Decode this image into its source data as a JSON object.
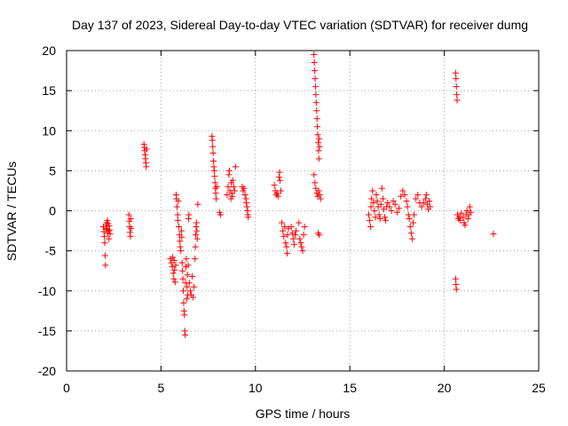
{
  "chart_data": {
    "type": "scatter",
    "title": "Day 137 of 2023, Sidereal Day-to-day VTEC variation (SDTVAR) for receiver dumg",
    "xlabel": "GPS time / hours",
    "ylabel": "SDTVAR / TECUs",
    "xlim": [
      0,
      25
    ],
    "ylim": [
      -20,
      20
    ],
    "xticks": [
      0,
      5,
      10,
      15,
      20,
      25
    ],
    "yticks": [
      -20,
      -15,
      -10,
      -5,
      0,
      5,
      10,
      15,
      20
    ],
    "xtick_labels": [
      "0",
      "5",
      "10",
      "15",
      "20",
      "25"
    ],
    "ytick_labels": [
      "-20",
      "-15",
      "-10",
      "-5",
      "0",
      "5",
      "10",
      "15",
      "20"
    ],
    "grid": true,
    "legend": "none",
    "marker": "+",
    "series_color": "#ff0000",
    "series": [
      {
        "name": "SDTVAR",
        "points": [
          [
            1.95,
            -2.0
          ],
          [
            1.98,
            -2.6
          ],
          [
            2.0,
            -3.2
          ],
          [
            2.02,
            -4.0
          ],
          [
            2.04,
            -5.6
          ],
          [
            2.06,
            -6.8
          ],
          [
            2.08,
            -2.3
          ],
          [
            2.1,
            -1.8
          ],
          [
            2.12,
            -1.5
          ],
          [
            2.14,
            -2.2
          ],
          [
            2.16,
            -1.2
          ],
          [
            2.18,
            -2.8
          ],
          [
            2.2,
            -1.6
          ],
          [
            2.22,
            -2.5
          ],
          [
            2.24,
            -3.5
          ],
          [
            2.26,
            -1.9
          ],
          [
            2.28,
            -2.4
          ],
          [
            2.3,
            -2.9
          ],
          [
            3.3,
            -0.5
          ],
          [
            3.32,
            -1.3
          ],
          [
            3.34,
            -2.0
          ],
          [
            3.36,
            -2.7
          ],
          [
            3.38,
            -3.2
          ],
          [
            3.4,
            -1.0
          ],
          [
            3.42,
            -2.2
          ],
          [
            4.1,
            8.3
          ],
          [
            4.12,
            7.9
          ],
          [
            4.14,
            7.5
          ],
          [
            4.16,
            7.0
          ],
          [
            4.18,
            6.5
          ],
          [
            4.2,
            6.0
          ],
          [
            4.22,
            5.5
          ],
          [
            4.24,
            7.7
          ],
          [
            5.5,
            -6.0
          ],
          [
            5.55,
            -6.5
          ],
          [
            5.6,
            -7.0
          ],
          [
            5.62,
            -5.8
          ],
          [
            5.65,
            -7.8
          ],
          [
            5.68,
            -8.5
          ],
          [
            5.7,
            -6.2
          ],
          [
            5.72,
            -7.4
          ],
          [
            5.75,
            -8.9
          ],
          [
            5.78,
            -6.8
          ],
          [
            5.8,
            2.0
          ],
          [
            5.82,
            1.5
          ],
          [
            5.85,
            0.5
          ],
          [
            5.88,
            -0.5
          ],
          [
            5.9,
            -1.2
          ],
          [
            5.92,
            1.2
          ],
          [
            5.95,
            -2.0
          ],
          [
            5.98,
            -3.0
          ],
          [
            6.0,
            -3.8
          ],
          [
            6.02,
            -4.5
          ],
          [
            6.05,
            -5.0
          ],
          [
            6.08,
            -2.5
          ],
          [
            6.1,
            -3.3
          ],
          [
            6.12,
            -6.5
          ],
          [
            6.14,
            -7.5
          ],
          [
            6.16,
            -8.5
          ],
          [
            6.18,
            -10.0
          ],
          [
            6.2,
            -11.5
          ],
          [
            6.22,
            -12.5
          ],
          [
            6.24,
            -13.0
          ],
          [
            6.26,
            -15.0
          ],
          [
            6.28,
            -15.5
          ],
          [
            6.3,
            -9.0
          ],
          [
            6.32,
            -7.0
          ],
          [
            6.34,
            -6.0
          ],
          [
            6.36,
            -11.0
          ],
          [
            6.38,
            -9.5
          ],
          [
            6.4,
            -8.0
          ],
          [
            6.42,
            -10.5
          ],
          [
            6.44,
            -6.8
          ],
          [
            6.46,
            -1.0
          ],
          [
            6.48,
            -0.5
          ],
          [
            6.5,
            -9.0
          ],
          [
            6.55,
            -10.0
          ],
          [
            6.6,
            -10.5
          ],
          [
            6.65,
            -8.2
          ],
          [
            6.7,
            -10.8
          ],
          [
            6.75,
            -9.5
          ],
          [
            6.8,
            -6.0
          ],
          [
            6.82,
            -4.5
          ],
          [
            6.84,
            -3.0
          ],
          [
            6.86,
            -2.0
          ],
          [
            6.88,
            -1.5
          ],
          [
            6.9,
            -2.5
          ],
          [
            6.92,
            -3.5
          ],
          [
            6.95,
            0.8
          ],
          [
            7.7,
            9.3
          ],
          [
            7.72,
            8.8
          ],
          [
            7.74,
            8.0
          ],
          [
            7.76,
            7.2
          ],
          [
            7.78,
            6.2
          ],
          [
            7.8,
            5.5
          ],
          [
            7.82,
            5.0
          ],
          [
            7.84,
            4.3
          ],
          [
            7.86,
            3.5
          ],
          [
            7.88,
            2.8
          ],
          [
            7.9,
            2.2
          ],
          [
            7.92,
            1.5
          ],
          [
            7.95,
            3.0
          ],
          [
            8.1,
            -0.2
          ],
          [
            8.15,
            -0.5
          ],
          [
            8.5,
            2.0
          ],
          [
            8.55,
            3.0
          ],
          [
            8.6,
            4.5
          ],
          [
            8.62,
            5.0
          ],
          [
            8.65,
            2.5
          ],
          [
            8.7,
            1.5
          ],
          [
            8.72,
            3.5
          ],
          [
            8.75,
            2.2
          ],
          [
            8.78,
            1.8
          ],
          [
            8.8,
            3.8
          ],
          [
            8.85,
            3.0
          ],
          [
            8.9,
            2.5
          ],
          [
            8.95,
            5.5
          ],
          [
            9.3,
            3.0
          ],
          [
            9.35,
            2.5
          ],
          [
            9.4,
            2.8
          ],
          [
            9.45,
            2.0
          ],
          [
            9.5,
            1.5
          ],
          [
            9.52,
            1.0
          ],
          [
            9.55,
            0.5
          ],
          [
            9.58,
            0.0
          ],
          [
            9.6,
            -0.5
          ],
          [
            9.62,
            -0.8
          ],
          [
            11.0,
            3.2
          ],
          [
            11.05,
            2.5
          ],
          [
            11.1,
            2.0
          ],
          [
            11.15,
            2.2
          ],
          [
            11.2,
            1.8
          ],
          [
            11.25,
            4.2
          ],
          [
            11.28,
            4.8
          ],
          [
            11.3,
            3.8
          ],
          [
            11.35,
            2.5
          ],
          [
            11.4,
            -1.5
          ],
          [
            11.45,
            -2.5
          ],
          [
            11.5,
            -3.2
          ],
          [
            11.55,
            -2.0
          ],
          [
            11.6,
            -4.0
          ],
          [
            11.65,
            -4.5
          ],
          [
            11.68,
            -5.3
          ],
          [
            11.7,
            -3.0
          ],
          [
            11.75,
            -2.2
          ],
          [
            11.9,
            -2.0
          ],
          [
            11.95,
            -2.8
          ],
          [
            12.0,
            -3.5
          ],
          [
            12.05,
            -4.2
          ],
          [
            12.1,
            -3.0
          ],
          [
            12.15,
            -2.5
          ],
          [
            12.3,
            -1.5
          ],
          [
            12.35,
            -3.5
          ],
          [
            12.4,
            -4.0
          ],
          [
            12.45,
            -4.5
          ],
          [
            12.5,
            -5.0
          ],
          [
            12.55,
            -3.0
          ],
          [
            12.6,
            -2.0
          ],
          [
            13.1,
            19.5
          ],
          [
            13.12,
            18.5
          ],
          [
            13.14,
            17.5
          ],
          [
            13.16,
            16.5
          ],
          [
            13.18,
            15.5
          ],
          [
            13.2,
            14.5
          ],
          [
            13.22,
            13.5
          ],
          [
            13.24,
            12.5
          ],
          [
            13.26,
            11.5
          ],
          [
            13.28,
            10.5
          ],
          [
            13.3,
            9.5
          ],
          [
            13.32,
            8.5
          ],
          [
            13.34,
            7.5
          ],
          [
            13.36,
            6.5
          ],
          [
            13.38,
            9.0
          ],
          [
            13.4,
            8.0
          ],
          [
            13.1,
            4.5
          ],
          [
            13.15,
            3.5
          ],
          [
            13.2,
            2.8
          ],
          [
            13.25,
            2.2
          ],
          [
            13.3,
            1.8
          ],
          [
            13.35,
            2.5
          ],
          [
            13.4,
            2.0
          ],
          [
            13.45,
            1.5
          ],
          [
            13.32,
            -2.8
          ],
          [
            13.38,
            -3.0
          ],
          [
            16.0,
            -0.5
          ],
          [
            16.05,
            -1.2
          ],
          [
            16.1,
            -2.0
          ],
          [
            16.12,
            0.5
          ],
          [
            16.15,
            1.5
          ],
          [
            16.2,
            2.5
          ],
          [
            16.25,
            1.0
          ],
          [
            16.3,
            0.0
          ],
          [
            16.35,
            -0.8
          ],
          [
            16.4,
            2.0
          ],
          [
            16.45,
            1.2
          ],
          [
            16.5,
            0.5
          ],
          [
            16.55,
            -0.5
          ],
          [
            16.6,
            -1.0
          ],
          [
            16.65,
            0.8
          ],
          [
            16.7,
            2.8
          ],
          [
            16.75,
            1.5
          ],
          [
            16.8,
            0.2
          ],
          [
            16.85,
            -0.8
          ],
          [
            16.9,
            -1.2
          ],
          [
            16.95,
            0.5
          ],
          [
            17.0,
            1.0
          ],
          [
            17.1,
            0.5
          ],
          [
            17.2,
            0.0
          ],
          [
            17.3,
            1.2
          ],
          [
            17.4,
            0.8
          ],
          [
            17.5,
            -0.2
          ],
          [
            17.6,
            0.3
          ],
          [
            17.7,
            1.8
          ],
          [
            17.8,
            2.5
          ],
          [
            17.9,
            2.0
          ],
          [
            18.0,
            1.2
          ],
          [
            18.05,
            0.5
          ],
          [
            18.1,
            -0.5
          ],
          [
            18.15,
            -1.0
          ],
          [
            18.2,
            -2.0
          ],
          [
            18.25,
            -2.8
          ],
          [
            18.3,
            -3.5
          ],
          [
            18.35,
            -1.5
          ],
          [
            18.4,
            -0.5
          ],
          [
            18.5,
            1.5
          ],
          [
            18.6,
            2.0
          ],
          [
            18.7,
            1.0
          ],
          [
            18.8,
            0.5
          ],
          [
            18.9,
            1.0
          ],
          [
            19.0,
            1.5
          ],
          [
            19.05,
            2.0
          ],
          [
            19.1,
            0.8
          ],
          [
            19.15,
            0.2
          ],
          [
            19.2,
            1.2
          ],
          [
            19.25,
            0.5
          ],
          [
            20.6,
            17.2
          ],
          [
            20.62,
            16.5
          ],
          [
            20.64,
            15.5
          ],
          [
            20.66,
            14.5
          ],
          [
            20.68,
            13.8
          ],
          [
            20.6,
            -8.5
          ],
          [
            20.62,
            -9.2
          ],
          [
            20.64,
            -9.8
          ],
          [
            20.7,
            -0.5
          ],
          [
            20.75,
            -1.0
          ],
          [
            20.8,
            -0.8
          ],
          [
            20.85,
            -1.2
          ],
          [
            20.9,
            -0.3
          ],
          [
            21.0,
            -0.8
          ],
          [
            21.05,
            -1.5
          ],
          [
            21.1,
            -1.8
          ],
          [
            21.15,
            -0.5
          ],
          [
            21.2,
            0.0
          ],
          [
            21.25,
            -1.0
          ],
          [
            21.3,
            -0.5
          ],
          [
            21.35,
            0.5
          ],
          [
            21.4,
            -0.2
          ],
          [
            22.6,
            -2.9
          ]
        ]
      }
    ]
  }
}
